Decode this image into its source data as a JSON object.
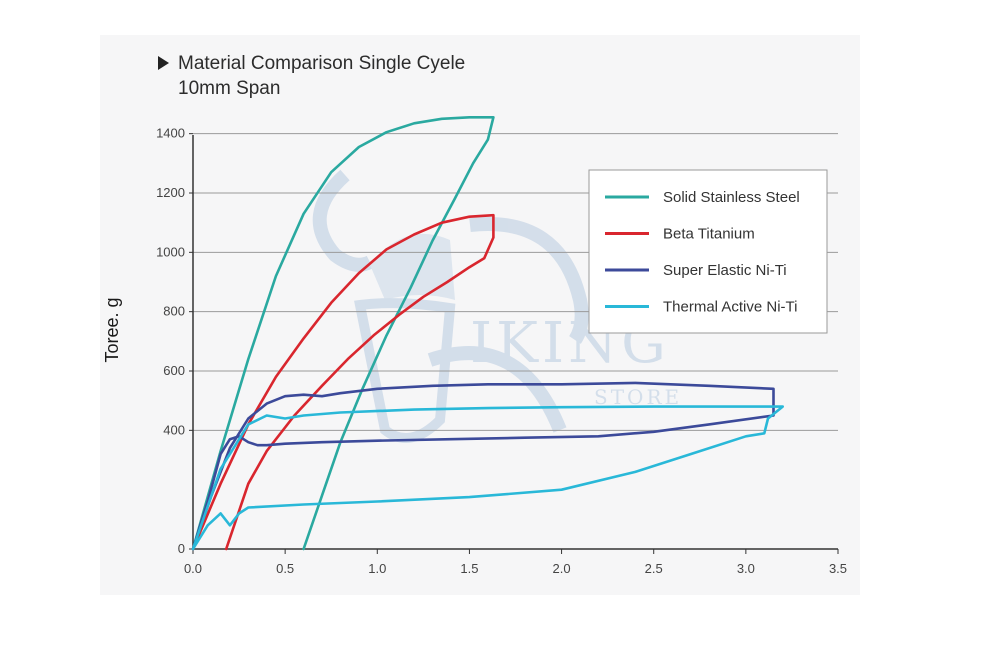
{
  "chart_data": {
    "type": "line",
    "title": "Material Comparison Single Cyele",
    "subtitle": "10mm Span",
    "xlabel": "",
    "ylabel": "Toree. g",
    "xlim": [
      0,
      3.5
    ],
    "ylim": [
      0,
      1500
    ],
    "xticks": [
      "0.0",
      "0.5",
      "1.0",
      "1.5",
      "2.0",
      "2.5",
      "3.0",
      "3.5"
    ],
    "yticks": [
      "0",
      "400",
      "600",
      "800",
      "1000",
      "1200",
      "1400"
    ],
    "yticks_values": [
      0,
      400,
      600,
      800,
      1000,
      1200,
      1400
    ],
    "grid": "horizontal",
    "legend_position": "top-right",
    "series": [
      {
        "name": "Solid Stainless Steel",
        "color": "#2aa9a0",
        "x": [
          0.0,
          0.15,
          0.3,
          0.45,
          0.6,
          0.75,
          0.9,
          1.05,
          1.2,
          1.35,
          1.5,
          1.63,
          1.6,
          1.52,
          1.42,
          1.3,
          1.18,
          1.05,
          0.92,
          0.8,
          0.7,
          0.6
        ],
        "y": [
          0,
          330,
          640,
          920,
          1130,
          1270,
          1355,
          1405,
          1435,
          1450,
          1455,
          1455,
          1380,
          1300,
          1180,
          1040,
          880,
          720,
          540,
          360,
          180,
          0
        ]
      },
      {
        "name": "Beta Titanium",
        "color": "#d9262e",
        "x": [
          0.0,
          0.15,
          0.3,
          0.45,
          0.6,
          0.75,
          0.9,
          1.05,
          1.2,
          1.35,
          1.5,
          1.63,
          1.63,
          1.58,
          1.5,
          1.38,
          1.25,
          1.12,
          0.98,
          0.84,
          0.7,
          0.55,
          0.4,
          0.3,
          0.18
        ],
        "y": [
          0,
          220,
          420,
          580,
          710,
          830,
          930,
          1010,
          1060,
          1100,
          1120,
          1125,
          1050,
          980,
          950,
          900,
          850,
          790,
          720,
          640,
          550,
          450,
          330,
          220,
          0
        ]
      },
      {
        "name": "Super Elastic Ni-Ti",
        "color": "#3c4a9a",
        "x": [
          0.0,
          0.1,
          0.2,
          0.3,
          0.4,
          0.5,
          0.6,
          0.7,
          0.8,
          1.0,
          1.3,
          1.6,
          2.0,
          2.4,
          2.8,
          3.15,
          3.15,
          3.15,
          2.8,
          2.5,
          2.2,
          1.8,
          1.4,
          1.0,
          0.7,
          0.5,
          0.4,
          0.35,
          0.3,
          0.25,
          0.2,
          0.15,
          0.08,
          0.0
        ],
        "y": [
          0,
          180,
          340,
          440,
          490,
          515,
          520,
          515,
          525,
          540,
          550,
          555,
          555,
          560,
          550,
          540,
          480,
          450,
          420,
          395,
          380,
          375,
          370,
          365,
          360,
          355,
          350,
          350,
          360,
          380,
          370,
          320,
          160,
          0
        ]
      },
      {
        "name": "Thermal Active Ni-Ti",
        "color": "#29b8d8",
        "x": [
          0.0,
          0.15,
          0.3,
          0.4,
          0.5,
          0.6,
          0.8,
          1.2,
          1.6,
          2.0,
          2.5,
          3.0,
          3.2,
          3.12,
          3.1,
          3.0,
          2.7,
          2.4,
          2.0,
          1.5,
          1.0,
          0.6,
          0.3,
          0.25,
          0.2,
          0.15,
          0.08,
          0.0
        ],
        "y": [
          0,
          270,
          420,
          450,
          440,
          450,
          460,
          470,
          475,
          478,
          480,
          480,
          480,
          440,
          390,
          380,
          320,
          260,
          200,
          175,
          160,
          150,
          140,
          120,
          80,
          120,
          80,
          0
        ]
      }
    ]
  },
  "watermark": {
    "word": "IKING",
    "store": "STORE",
    "color": "#b8cbe0"
  }
}
